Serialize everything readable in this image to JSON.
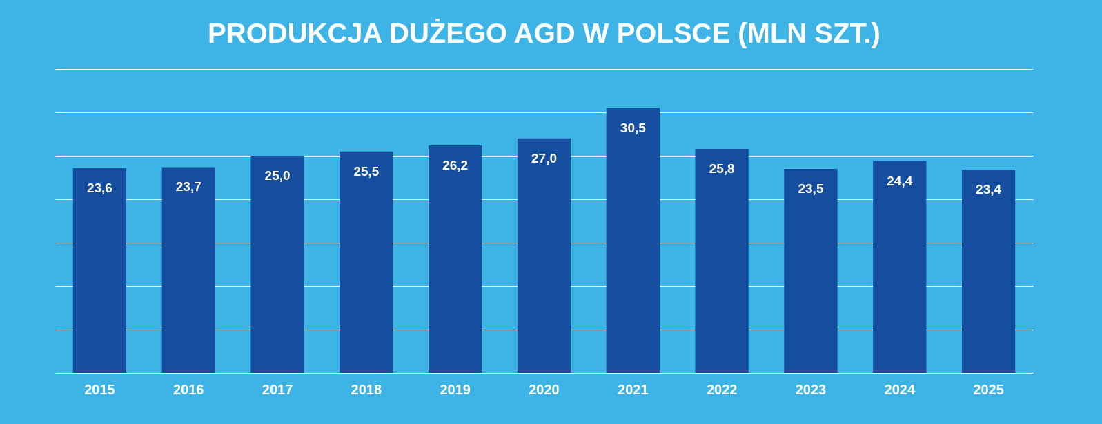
{
  "chart_data": {
    "type": "bar",
    "title": "PRODUKCJA DUŻEGO AGD W POLSCE (MLN SZT.)",
    "categories": [
      "2015",
      "2016",
      "2017",
      "2018",
      "2019",
      "2020",
      "2021",
      "2022",
      "2023",
      "2024",
      "2025"
    ],
    "values": [
      23.6,
      23.7,
      25.0,
      25.5,
      26.2,
      27.0,
      30.5,
      25.8,
      23.5,
      24.4,
      23.4
    ],
    "value_labels": [
      "23,6",
      "23,7",
      "25,0",
      "25,5",
      "26,2",
      "27,0",
      "30,5",
      "25,8",
      "23,5",
      "24,4",
      "23,4"
    ],
    "color": "#154e9f",
    "grid": "y",
    "tick_labels": "x"
  }
}
